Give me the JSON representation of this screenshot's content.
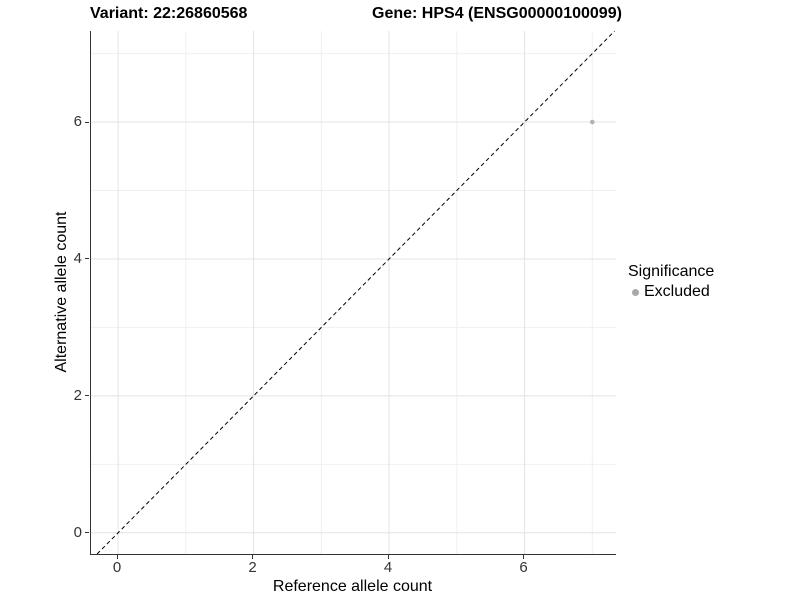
{
  "titles": {
    "variant": "Variant: 22:26860568",
    "gene": "Gene: HPS4 (ENSG00000100099)"
  },
  "legend": {
    "title": "Significance",
    "items": [
      {
        "label": "Excluded",
        "color": "#a8a8a8"
      }
    ]
  },
  "colors": {
    "axis_line": "#333333",
    "tick_text": "#333333",
    "grid_major": "#e3e3e3",
    "grid_minor": "#f0f0f0",
    "reference_line": "#000000",
    "point": "#b3b3b3",
    "background": "#ffffff"
  },
  "chart_data": {
    "type": "scatter",
    "title": "Variant: 22:26860568   Gene: HPS4 (ENSG00000100099)",
    "xlabel": "Reference allele count",
    "ylabel": "Alternative allele count",
    "xlim": [
      -0.4,
      7.35
    ],
    "ylim": [
      -0.31,
      7.33
    ],
    "x_ticks": [
      0,
      2,
      4,
      6
    ],
    "y_ticks": [
      0,
      2,
      4,
      6
    ],
    "x_minor_ticks": [
      1,
      3,
      5,
      7
    ],
    "y_minor_ticks": [
      1,
      3,
      5,
      7
    ],
    "grid": true,
    "legend_position": "right",
    "reference_line": {
      "type": "abline",
      "slope": 1,
      "intercept": 0,
      "style": "dashed",
      "color": "#000000"
    },
    "series": [
      {
        "name": "Excluded",
        "color": "#b3b3b3",
        "points": [
          {
            "x": 7,
            "y": 6
          }
        ]
      }
    ]
  }
}
